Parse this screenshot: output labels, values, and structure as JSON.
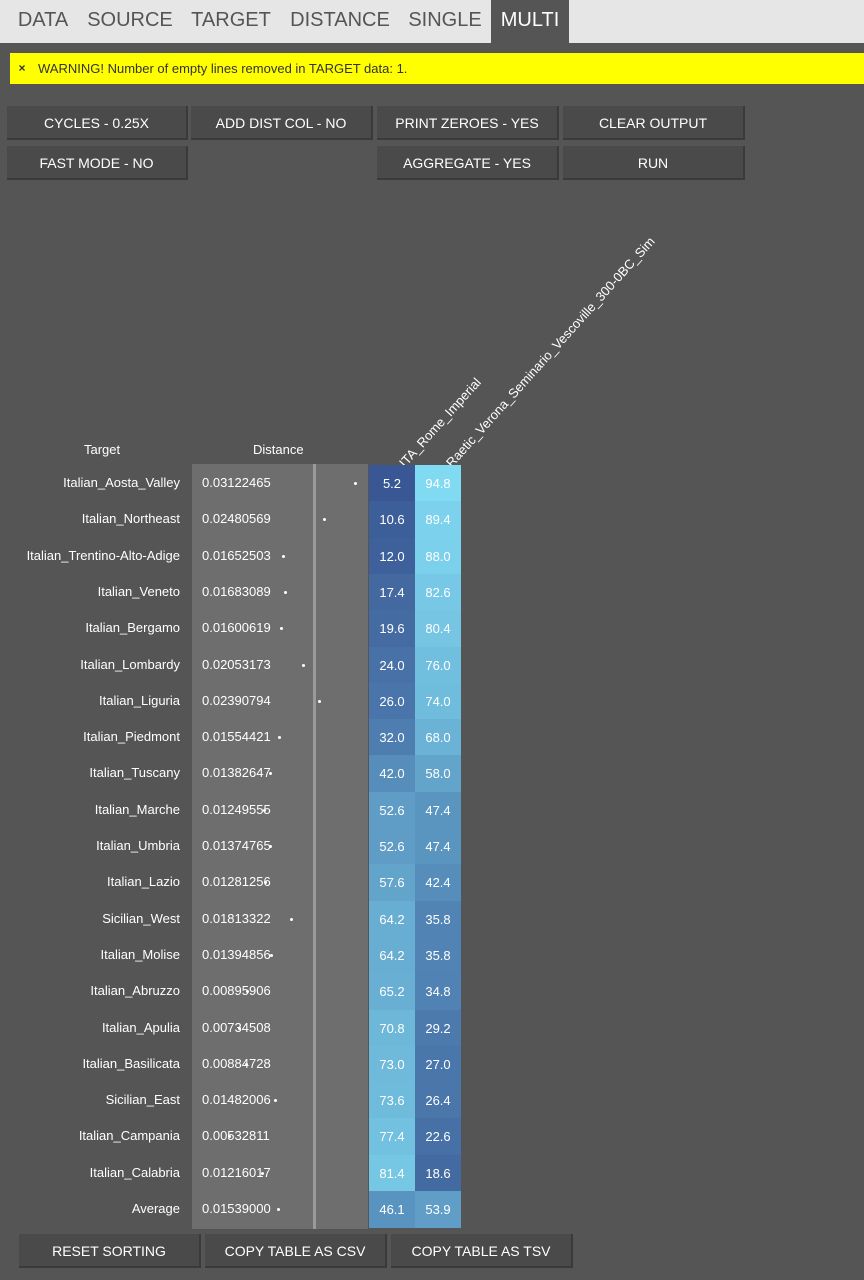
{
  "tabs": [
    "DATA",
    "SOURCE",
    "TARGET",
    "DISTANCE",
    "SINGLE",
    "MULTI"
  ],
  "active_tab": "MULTI",
  "warning": {
    "close_glyph": "×",
    "message": "WARNING! Number of empty lines removed in TARGET data: 1."
  },
  "buttons": {
    "cycles": "CYCLES - 0.25X",
    "add_dist_col": "ADD DIST COL - NO",
    "print_zeroes": "PRINT ZEROES - YES",
    "clear_output": "CLEAR OUTPUT",
    "fast_mode": "FAST MODE - NO",
    "aggregate": "AGGREGATE - YES",
    "run": "RUN"
  },
  "table": {
    "headers": {
      "target": "Target",
      "distance": "Distance",
      "col1": "ITA_Rome_Imperial",
      "col2": "Raetic_Verona_Seminario_Vescoville_300-0BC_Sim"
    },
    "rows": [
      {
        "target": "Italian_Aosta_Valley",
        "distance": "0.03122465",
        "d": 0.03122465,
        "c1": "5.2",
        "c2": "94.8"
      },
      {
        "target": "Italian_Northeast",
        "distance": "0.02480569",
        "d": 0.02480569,
        "c1": "10.6",
        "c2": "89.4"
      },
      {
        "target": "Italian_Trentino-Alto-Adige",
        "distance": "0.01652503",
        "d": 0.01652503,
        "c1": "12.0",
        "c2": "88.0"
      },
      {
        "target": "Italian_Veneto",
        "distance": "0.01683089",
        "d": 0.01683089,
        "c1": "17.4",
        "c2": "82.6"
      },
      {
        "target": "Italian_Bergamo",
        "distance": "0.01600619",
        "d": 0.01600619,
        "c1": "19.6",
        "c2": "80.4"
      },
      {
        "target": "Italian_Lombardy",
        "distance": "0.02053173",
        "d": 0.02053173,
        "c1": "24.0",
        "c2": "76.0"
      },
      {
        "target": "Italian_Liguria",
        "distance": "0.02390794",
        "d": 0.02390794,
        "c1": "26.0",
        "c2": "74.0"
      },
      {
        "target": "Italian_Piedmont",
        "distance": "0.01554421",
        "d": 0.01554421,
        "c1": "32.0",
        "c2": "68.0"
      },
      {
        "target": "Italian_Tuscany",
        "distance": "0.01382647",
        "d": 0.01382647,
        "c1": "42.0",
        "c2": "58.0"
      },
      {
        "target": "Italian_Marche",
        "distance": "0.01249555",
        "d": 0.01249555,
        "c1": "52.6",
        "c2": "47.4"
      },
      {
        "target": "Italian_Umbria",
        "distance": "0.01374765",
        "d": 0.01374765,
        "c1": "52.6",
        "c2": "47.4"
      },
      {
        "target": "Italian_Lazio",
        "distance": "0.01281256",
        "d": 0.01281256,
        "c1": "57.6",
        "c2": "42.4"
      },
      {
        "target": "Sicilian_West",
        "distance": "0.01813322",
        "d": 0.01813322,
        "c1": "64.2",
        "c2": "35.8"
      },
      {
        "target": "Italian_Molise",
        "distance": "0.01394856",
        "d": 0.01394856,
        "c1": "64.2",
        "c2": "35.8"
      },
      {
        "target": "Italian_Abruzzo",
        "distance": "0.00895906",
        "d": 0.00895906,
        "c1": "65.2",
        "c2": "34.8"
      },
      {
        "target": "Italian_Apulia",
        "distance": "0.00734508",
        "d": 0.00734508,
        "c1": "70.8",
        "c2": "29.2"
      },
      {
        "target": "Italian_Basilicata",
        "distance": "0.00884728",
        "d": 0.00884728,
        "c1": "73.0",
        "c2": "27.0"
      },
      {
        "target": "Sicilian_East",
        "distance": "0.01482006",
        "d": 0.01482006,
        "c1": "73.6",
        "c2": "26.4"
      },
      {
        "target": "Italian_Campania",
        "distance": "0.00532811",
        "d": 0.00532811,
        "c1": "77.4",
        "c2": "22.6"
      },
      {
        "target": "Italian_Calabria",
        "distance": "0.01216017",
        "d": 0.01216017,
        "c1": "81.4",
        "c2": "18.6"
      }
    ],
    "average": {
      "target": "Average",
      "distance": "0.01539000",
      "d": 0.01539,
      "c1": "46.1",
      "c2": "53.9"
    }
  },
  "bottom_buttons": {
    "reset_sorting": "RESET SORTING",
    "copy_csv": "COPY TABLE AS CSV",
    "copy_tsv": "COPY TABLE AS TSV"
  }
}
